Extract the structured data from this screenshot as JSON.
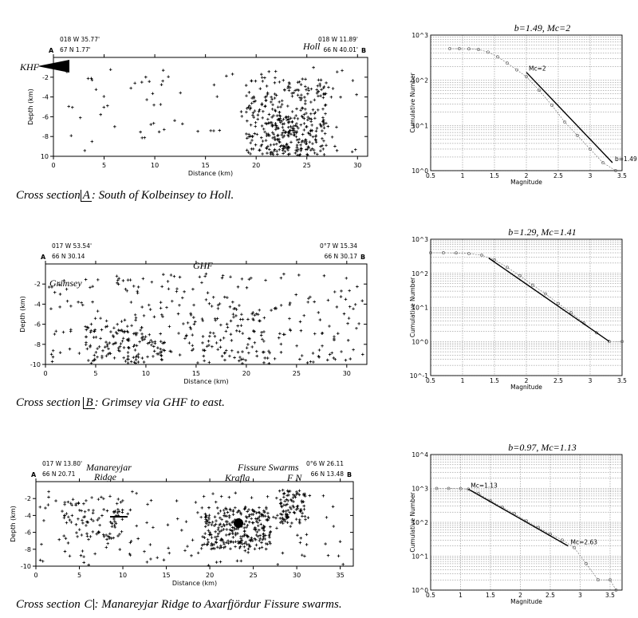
{
  "figure": {
    "sections": [
      {
        "id": "A",
        "left_letter": "A",
        "right_letter": "B",
        "coord_left_top": "018 W 35.77'",
        "coord_left_bottom": "67 N 1.77'",
        "coord_right_top": "018 W 11.89'",
        "coord_right_bottom": "66 N 40.01'",
        "place_labels": [
          "KHF",
          "Holl"
        ],
        "x_label": "Distance (km)",
        "y_label": "Depth (km)",
        "x_ticks": [
          "0",
          "5",
          "10",
          "15",
          "20",
          "25",
          "30"
        ],
        "y_ticks": [
          "-2",
          "-4",
          "-6",
          "-8",
          "10"
        ],
        "caption_prefix": "Cross section",
        "caption_letter": "A",
        "caption_suffix": ": South of Kolbeinsey to Holl."
      },
      {
        "id": "B",
        "left_letter": "A",
        "right_letter": "B",
        "coord_left_top": "017 W 53.54'",
        "coord_left_bottom": "66 N 30.14",
        "coord_right_top": "0°7 W 15.34",
        "coord_right_bottom": "66 N 30.17",
        "place_labels": [
          "GHF",
          "Grimsey"
        ],
        "x_label": "Distance (km)",
        "y_label": "Depth (km)",
        "x_ticks": [
          "0",
          "5",
          "10",
          "15",
          "20",
          "25",
          "30"
        ],
        "y_ticks": [
          "-2",
          "-4",
          "-6",
          "-8",
          "-10"
        ],
        "caption_prefix": "Cross section",
        "caption_letter": "B",
        "caption_suffix": ": Grimsey via GHF to east."
      },
      {
        "id": "C",
        "left_letter": "A",
        "right_letter": "B",
        "coord_left_top": "017 W 13.80'",
        "coord_left_bottom": "66 N 20.71",
        "coord_right_top": "0°6 W 26.11",
        "coord_right_bottom": "66 N 13.48",
        "place_labels": [
          "Manareyjar",
          "Ridge",
          "Fissure Swarms",
          "Krafla",
          "F N"
        ],
        "x_label": "Distance (km)",
        "y_label": "Depth (km)",
        "x_ticks": [
          "0",
          "5",
          "10",
          "15",
          "20",
          "25",
          "30",
          "35"
        ],
        "y_ticks": [
          "-2",
          "-4",
          "-6",
          "-8",
          "-10"
        ],
        "caption_prefix": "Cross section",
        "caption_letter": "C",
        "caption_suffix": ": Manareyjar Ridge to Axarfjördur Fissure swarms."
      }
    ]
  },
  "chart_data": [
    {
      "type": "scatter",
      "title": "b=1.49, Mc=2",
      "xlabel": "Magnitude",
      "ylabel": "Cumulative Number",
      "x_ticks": [
        "0.5",
        "1",
        "1.5",
        "2",
        "2.5",
        "3",
        "3.5"
      ],
      "y_tick_labels": [
        "10^3",
        "10^2",
        "10^1",
        "10^0"
      ],
      "xlim": [
        0.5,
        3.5
      ],
      "ylog_decades": [
        0,
        3
      ],
      "grid": true,
      "x": [
        0.8,
        0.95,
        1.1,
        1.25,
        1.4,
        1.55,
        1.7,
        1.85,
        2.0,
        2.2,
        2.4,
        2.6,
        2.8,
        3.0,
        3.2,
        3.4
      ],
      "y": [
        500,
        500,
        495,
        480,
        420,
        330,
        240,
        170,
        120,
        60,
        28,
        12,
        6,
        3,
        1.5,
        1
      ],
      "fit": {
        "x": [
          2.0,
          3.35
        ],
        "y": [
          150,
          1.5
        ]
      },
      "annotations": [
        "Mc=2",
        "b=1.49"
      ]
    },
    {
      "type": "scatter",
      "title": "b=1.29, Mc=1.41",
      "xlabel": "Magnitude",
      "ylabel": "Cumulative Number",
      "x_ticks": [
        "0.5",
        "1",
        "1.5",
        "2",
        "2.5",
        "3",
        "3.5"
      ],
      "y_tick_labels": [
        "10^3",
        "10^2",
        "10^1",
        "10^0",
        "10^-1"
      ],
      "xlim": [
        0.5,
        3.5
      ],
      "ylog_decades": [
        -1,
        3
      ],
      "grid": true,
      "x": [
        0.5,
        0.7,
        0.9,
        1.1,
        1.3,
        1.5,
        1.7,
        1.9,
        2.1,
        2.3,
        2.5,
        2.7,
        2.9,
        3.1,
        3.3,
        3.5
      ],
      "y": [
        400,
        400,
        395,
        380,
        340,
        250,
        150,
        85,
        45,
        25,
        13,
        7,
        3.5,
        1.8,
        1,
        1
      ],
      "fit": {
        "x": [
          1.41,
          3.3
        ],
        "y": [
          280,
          1
        ]
      }
    },
    {
      "type": "scatter",
      "title": "b=0.97, Mc=1.13",
      "xlabel": "Magnitude",
      "ylabel": "Cumulative Number",
      "x_ticks": [
        "0.5",
        "1",
        "1.5",
        "2",
        "2.5",
        "3",
        "3.5"
      ],
      "y_tick_labels": [
        "10^4",
        "10^3",
        "10^2",
        "10^1",
        "10^0"
      ],
      "xlim": [
        0.5,
        3.7
      ],
      "ylog_decades": [
        0,
        4
      ],
      "grid": true,
      "x": [
        0.6,
        0.8,
        1.0,
        1.13,
        1.3,
        1.5,
        1.7,
        1.9,
        2.1,
        2.3,
        2.5,
        2.7,
        2.9,
        3.1,
        3.3,
        3.5,
        3.6
      ],
      "y": [
        1000,
        1000,
        990,
        950,
        700,
        430,
        280,
        180,
        110,
        70,
        45,
        30,
        18,
        6,
        2,
        2,
        1
      ],
      "fit": {
        "x": [
          1.13,
          2.8
        ],
        "y": [
          950,
          20
        ]
      },
      "annotations": [
        "Mc=1.13",
        "Mc=2.63"
      ]
    }
  ]
}
